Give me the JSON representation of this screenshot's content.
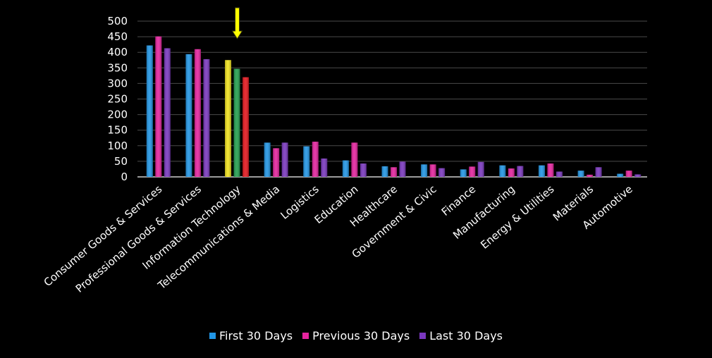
{
  "chart_data": {
    "type": "bar",
    "categories": [
      "Consumer Goods &  Services",
      "Professional Goods & Services",
      "Information Technology",
      "Telecommunications & Media",
      "Logistics",
      "Education",
      "Healthcare",
      "Government & Civic",
      "Finance",
      "Manufacturing",
      "Energy & Utilities",
      "Materials",
      "Automotive"
    ],
    "series": [
      {
        "name": "First 30 Days",
        "color": "#2196e6",
        "values": [
          422,
          394,
          375,
          110,
          98,
          53,
          34,
          40,
          24,
          37,
          37,
          20,
          10
        ]
      },
      {
        "name": "Previous 30 Days",
        "color": "#e6239f",
        "values": [
          451,
          410,
          347,
          92,
          113,
          110,
          31,
          40,
          33,
          27,
          43,
          7,
          20
        ]
      },
      {
        "name": "Last 30 Days",
        "color": "#7a37bf",
        "values": [
          413,
          378,
          320,
          110,
          59,
          43,
          49,
          28,
          48,
          35,
          17,
          31,
          8
        ]
      }
    ],
    "highlight": {
      "category_index": 2,
      "colors": [
        "#f2e31d",
        "#22a04e",
        "#e5161d"
      ],
      "arrow_color": "#ffff00"
    },
    "ylim": [
      0,
      500
    ],
    "yticks": [
      0,
      50,
      100,
      150,
      200,
      250,
      300,
      350,
      400,
      450,
      500
    ],
    "grid": true,
    "legend_position": "bottom"
  }
}
